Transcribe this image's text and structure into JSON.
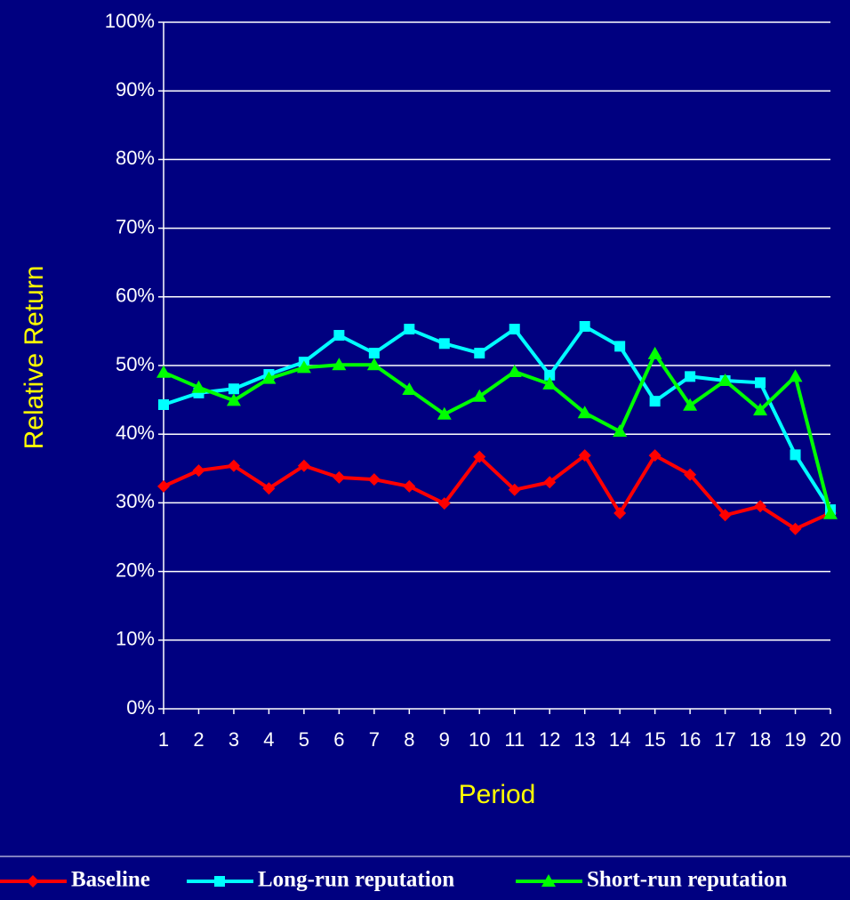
{
  "chart_data": {
    "type": "line",
    "x_label": "Period",
    "y_label": "Relative Return",
    "categories": [
      "1",
      "2",
      "3",
      "4",
      "5",
      "6",
      "7",
      "8",
      "9",
      "10",
      "11",
      "12",
      "13",
      "14",
      "15",
      "16",
      "17",
      "18",
      "19",
      "20"
    ],
    "series": [
      {
        "name": "Baseline",
        "color": "#ff0000",
        "marker": "diamond",
        "values": [
          32.4,
          34.7,
          35.4,
          32.1,
          35.4,
          33.7,
          33.4,
          32.4,
          29.9,
          36.7,
          31.9,
          33.0,
          36.9,
          28.5,
          36.9,
          34.1,
          28.2,
          29.5,
          26.2,
          28.5
        ]
      },
      {
        "name": "Long-run reputation",
        "color": "#00ffff",
        "marker": "square",
        "values": [
          44.3,
          46.0,
          46.6,
          48.7,
          50.5,
          54.4,
          51.8,
          55.3,
          53.2,
          51.8,
          55.3,
          48.6,
          55.7,
          52.8,
          44.8,
          48.4,
          47.8,
          47.5,
          37.0,
          29.0
        ]
      },
      {
        "name": "Short-run reputation",
        "color": "#00ff00",
        "marker": "triangle",
        "values": [
          49.0,
          46.8,
          44.9,
          48.1,
          49.7,
          50.1,
          50.1,
          46.5,
          42.9,
          45.5,
          49.1,
          47.3,
          43.1,
          40.4,
          51.7,
          44.2,
          47.8,
          43.5,
          48.4,
          28.4
        ]
      }
    ],
    "ylim": [
      0,
      100
    ],
    "yticks": [
      {
        "value": 0,
        "label": "0%"
      },
      {
        "value": 10,
        "label": "10%"
      },
      {
        "value": 20,
        "label": "20%"
      },
      {
        "value": 30,
        "label": "30%"
      },
      {
        "value": 40,
        "label": "40%"
      },
      {
        "value": 50,
        "label": "50%"
      },
      {
        "value": 60,
        "label": "60%"
      },
      {
        "value": 70,
        "label": "70%"
      },
      {
        "value": 80,
        "label": "80%"
      },
      {
        "value": 90,
        "label": "90%"
      },
      {
        "value": 100,
        "label": "100%"
      }
    ],
    "grid": true,
    "legend": "bottom"
  }
}
